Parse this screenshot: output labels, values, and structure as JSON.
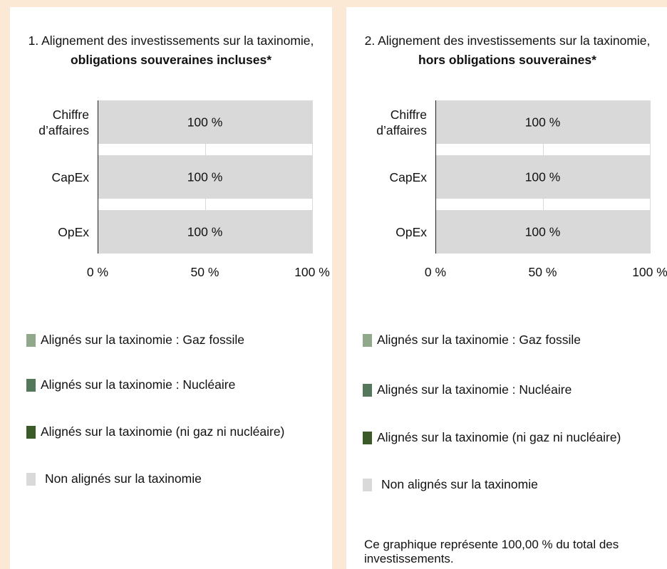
{
  "chart_data": [
    {
      "type": "stacked_bar_horizontal",
      "title": "1. Alignement des investissements sur la taxinomie,",
      "title_emphasis": "obligations souveraines incluses*",
      "categories": [
        "Chiffre d’affaires",
        "CapEx",
        "OpEx"
      ],
      "series": [
        {
          "name": "Alignés sur la taxinomie : Gaz fossile",
          "color": "#8fa98a",
          "values": [
            0,
            0,
            0
          ]
        },
        {
          "name": "Alignés sur la taxinomie : Nucléaire",
          "color": "#54795a",
          "values": [
            0,
            0,
            0
          ]
        },
        {
          "name": "Alignés sur la taxinomie (ni gaz ni nucléaire)",
          "color": "#3a5a28",
          "values": [
            0,
            0,
            0
          ]
        },
        {
          "name": "Non alignés sur la taxinomie",
          "color": "#d9d9d9",
          "values": [
            100,
            100,
            100
          ],
          "value_labels": [
            "100 %",
            "100 %",
            "100 %"
          ]
        }
      ],
      "xlim": [
        0,
        100
      ],
      "xticks": [
        {
          "value": 0,
          "label": "0 %"
        },
        {
          "value": 50,
          "label": "50 %"
        },
        {
          "value": 100,
          "label": "100 %"
        }
      ],
      "grid": true
    },
    {
      "type": "stacked_bar_horizontal",
      "title": "2. Alignement des investissements sur la taxinomie,",
      "title_emphasis": "hors obligations souveraines*",
      "categories": [
        "Chiffre d’affaires",
        "CapEx",
        "OpEx"
      ],
      "series": [
        {
          "name": "Alignés sur la taxinomie : Gaz fossile",
          "color": "#8fa98a",
          "values": [
            0,
            0,
            0
          ]
        },
        {
          "name": "Alignés sur la taxinomie : Nucléaire",
          "color": "#54795a",
          "values": [
            0,
            0,
            0
          ]
        },
        {
          "name": "Alignés sur la taxinomie (ni gaz ni nucléaire)",
          "color": "#3a5a28",
          "values": [
            0,
            0,
            0
          ]
        },
        {
          "name": "Non alignés sur la taxinomie",
          "color": "#d9d9d9",
          "values": [
            100,
            100,
            100
          ],
          "value_labels": [
            "100 %",
            "100 %",
            "100 %"
          ]
        }
      ],
      "xlim": [
        0,
        100
      ],
      "xticks": [
        {
          "value": 0,
          "label": "0 %"
        },
        {
          "value": 50,
          "label": "50 %"
        },
        {
          "value": 100,
          "label": "100 %"
        }
      ],
      "grid": true,
      "note": "Ce graphique représente 100,00 % du total des investissements."
    }
  ]
}
